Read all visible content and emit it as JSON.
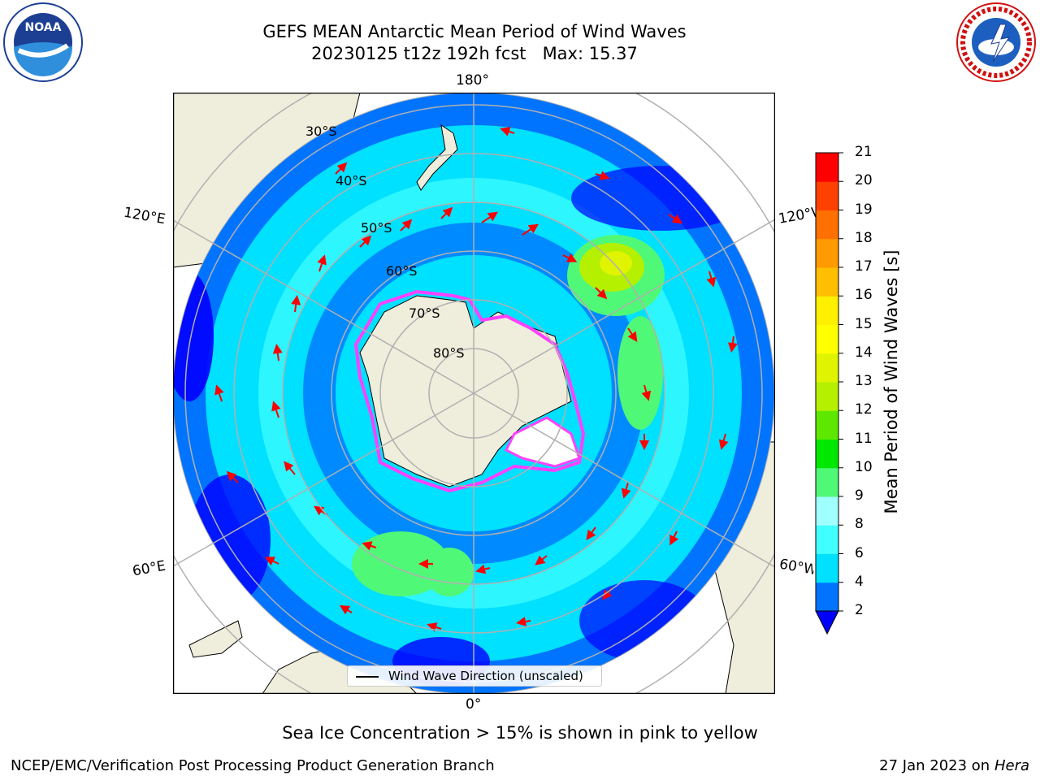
{
  "header": {
    "title": "GEFS MEAN Antarctic Mean Period of Wind Waves",
    "subtitle": "20230125 t12z 192h fcst   Max: 15.37"
  },
  "map": {
    "projection": "south-polar-stereographic",
    "longitude_labels": {
      "top": "180°",
      "bottom": "0°",
      "left_upper": "120°E",
      "left_lower": "60°E",
      "right_upper": "120°W",
      "right_lower": "60°W"
    },
    "latitude_labels": [
      "30°S",
      "40°S",
      "50°S",
      "60°S",
      "70°S",
      "80°S"
    ],
    "colors": {
      "land": "#efeedc",
      "ice_cap": "#ffffff",
      "gridline": "#b0b0b0",
      "arrows": "#ff0000",
      "sea_ice_edge": "#ff40ff"
    }
  },
  "colorbar": {
    "label": "Mean Period of Wind Waves [s]",
    "ticks": [
      "2",
      "4",
      "6",
      "8",
      "9",
      "10",
      "11",
      "12",
      "13",
      "14",
      "15",
      "16",
      "17",
      "18",
      "19",
      "20",
      "21"
    ],
    "levels": [
      2,
      4,
      6,
      8,
      9,
      10,
      11,
      12,
      13,
      14,
      15,
      16,
      17,
      18,
      19,
      20,
      21
    ],
    "colors": [
      "#0074ff",
      "#00e0ff",
      "#40ffff",
      "#a0ffff",
      "#50f878",
      "#00e800",
      "#5ee800",
      "#b4f000",
      "#e0f400",
      "#ffff00",
      "#fff000",
      "#ffbe00",
      "#ff9a00",
      "#ff7000",
      "#ff4000",
      "#ff0000"
    ],
    "under_color": "#0000ff",
    "extend": "min"
  },
  "legend": {
    "label": "Wind Wave Direction (unscaled)"
  },
  "note": "Sea Ice Concentration > 15% is shown in pink to yellow",
  "footer": {
    "left": "NCEP/EMC/Verification Post Processing Product Generation Branch",
    "date": "27 Jan 2023 on ",
    "machine": "Hera"
  },
  "logos": {
    "left": "noaa-logo",
    "right": "nws-logo"
  }
}
